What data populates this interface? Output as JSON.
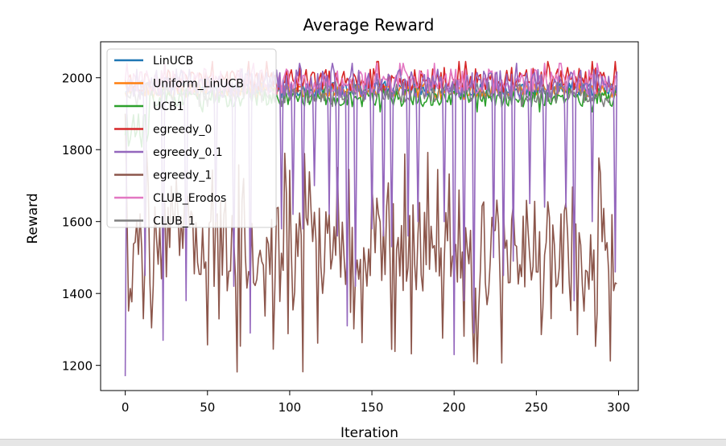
{
  "chart_data": {
    "type": "line",
    "title": "Average Reward",
    "xlabel": "Iteration",
    "ylabel": "Reward",
    "xlim": [
      -15,
      312
    ],
    "ylim": [
      1130,
      2100
    ],
    "xticks": [
      0,
      50,
      100,
      150,
      200,
      250,
      300
    ],
    "yticks": [
      1200,
      1400,
      1600,
      1800,
      2000
    ],
    "legend_position": "upper-left",
    "grid": false,
    "x": {
      "start": 0,
      "end": 299,
      "step": 1
    },
    "series": [
      {
        "name": "LinUCB",
        "color": "#1f77b4",
        "y": {
          "level": 1968,
          "range": [
            1945,
            1990
          ]
        }
      },
      {
        "name": "Uniform_LinUCB",
        "color": "#ff7f0e",
        "y": {
          "level": 1965,
          "range": [
            1940,
            1990
          ]
        }
      },
      {
        "name": "UCB1",
        "color": "#2ca02c",
        "y": {
          "level": 1945,
          "range": [
            1905,
            1970
          ],
          "start_value": 1840,
          "early_dip": [
            1800,
            1900
          ]
        }
      },
      {
        "name": "egreedy_0",
        "color": "#d62728",
        "y": {
          "level": 1995,
          "range": [
            1960,
            2045
          ]
        }
      },
      {
        "name": "egreedy_0.1",
        "color": "#9467bd",
        "y": {
          "level": 1985,
          "range": [
            1940,
            2040
          ],
          "start_value": 1170,
          "dips": [
            [
              12,
              1450
            ],
            [
              23,
              1270
            ],
            [
              37,
              1380
            ],
            [
              55,
              1600
            ],
            [
              66,
              1420
            ],
            [
              76,
              1290
            ],
            [
              95,
              1580
            ],
            [
              102,
              1620
            ],
            [
              108,
              1580
            ],
            [
              115,
              1700
            ],
            [
              124,
              1620
            ],
            [
              129,
              1560
            ],
            [
              135,
              1310
            ],
            [
              140,
              1420
            ],
            [
              150,
              1580
            ],
            [
              157,
              1560
            ],
            [
              162,
              1530
            ],
            [
              172,
              1560
            ],
            [
              178,
              1600
            ],
            [
              194,
              1600
            ],
            [
              200,
              1230
            ],
            [
              206,
              1380
            ],
            [
              212,
              1290
            ],
            [
              224,
              1500
            ],
            [
              230,
              1450
            ],
            [
              236,
              1490
            ],
            [
              246,
              1650
            ],
            [
              255,
              1640
            ],
            [
              268,
              1640
            ],
            [
              273,
              1380
            ],
            [
              284,
              1600
            ],
            [
              298,
              1460
            ]
          ]
        }
      },
      {
        "name": "egreedy_1",
        "color": "#8c564b",
        "y": {
          "level": 1530,
          "range": [
            1180,
            1800
          ],
          "start_value": 1990
        }
      },
      {
        "name": "CLUB_Erodos",
        "color": "#e377c2",
        "y": {
          "level": 1990,
          "range": [
            1950,
            2040
          ]
        }
      },
      {
        "name": "CLUB_1",
        "color": "#7f7f7f",
        "y": {
          "level": 1960,
          "range": [
            1920,
            1995
          ]
        }
      }
    ]
  }
}
